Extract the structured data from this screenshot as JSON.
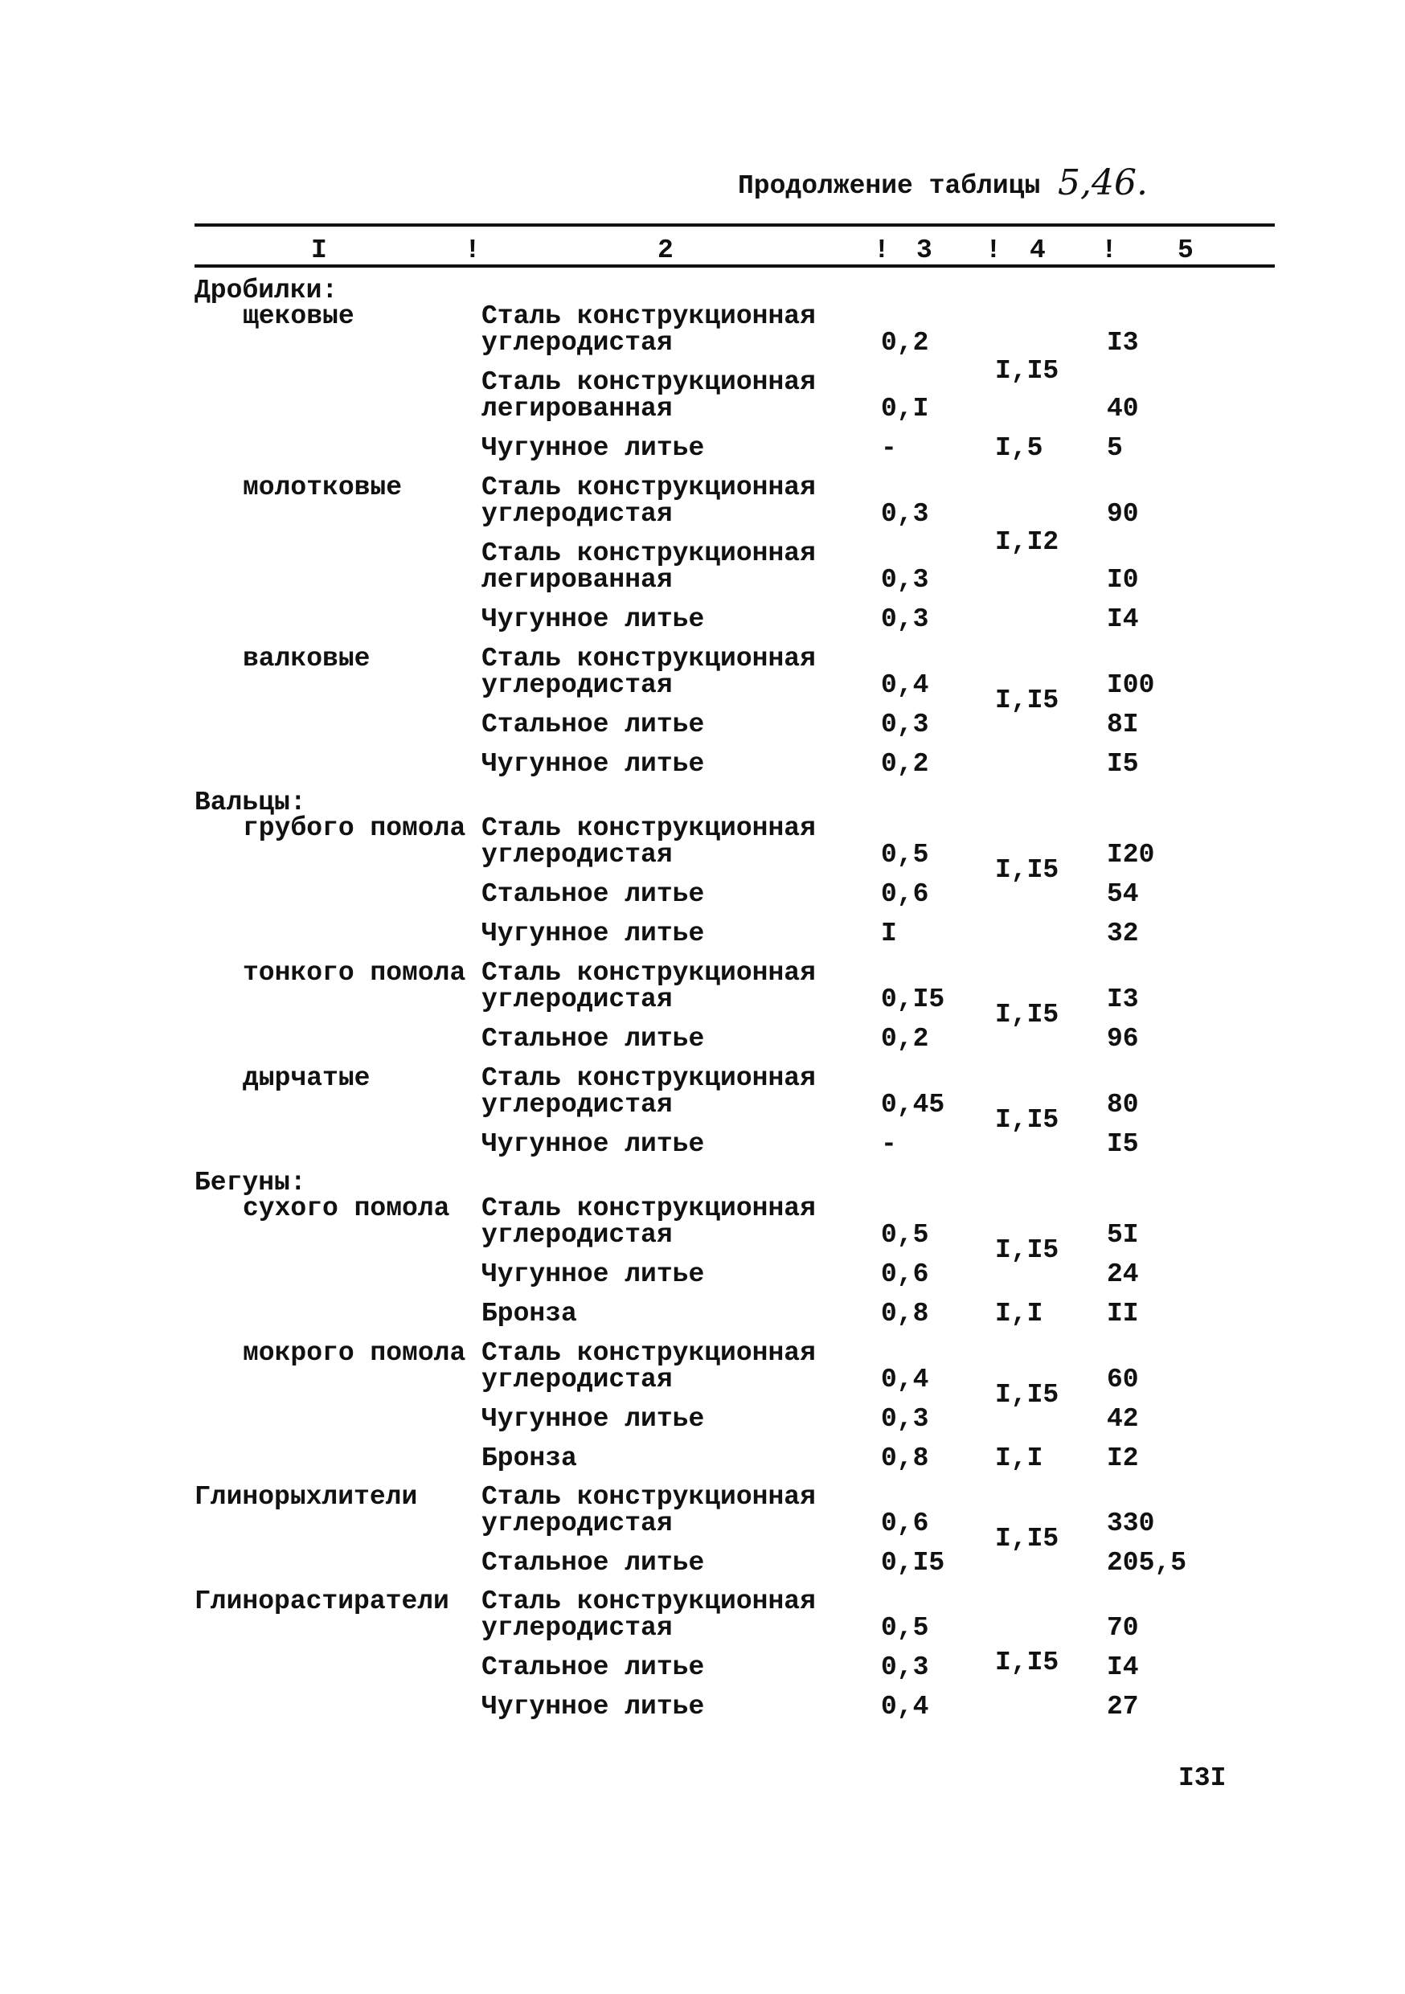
{
  "caption": {
    "text": "Продолжение таблицы",
    "handwritten_number": "5,46."
  },
  "header": {
    "columns": [
      "I",
      "2",
      "3",
      "4",
      "5"
    ],
    "separator": "!"
  },
  "sections": [
    {
      "title": "Дробилки:",
      "groups": [
        {
          "name": "щековые",
          "items": [
            {
              "material": [
                "Сталь конструкционная",
                "углеродистая"
              ],
              "c3": "0,2",
              "c4": "I,I5",
              "c4_rows": 2,
              "c5": "I3"
            },
            {
              "material": [
                "Сталь конструкционная",
                "легированная"
              ],
              "c3": "0,I",
              "c5": "40"
            },
            {
              "material": [
                "Чугунное литье"
              ],
              "c3": "-",
              "c4": "I,5",
              "c4_rows": 1,
              "c5": "5"
            }
          ]
        },
        {
          "name": "молотковые",
          "items": [
            {
              "material": [
                "Сталь конструкционная",
                "углеродистая"
              ],
              "c3": "0,3",
              "c4": "I,I2",
              "c4_rows": 2,
              "c5": "90"
            },
            {
              "material": [
                "Сталь конструкционная",
                "легированная"
              ],
              "c3": "0,3",
              "c5": "I0"
            },
            {
              "material": [
                "Чугунное литье"
              ],
              "c3": "0,3",
              "c5": "I4"
            }
          ]
        },
        {
          "name": "валковые",
          "items": [
            {
              "material": [
                "Сталь конструкционная",
                "углеродистая"
              ],
              "c3": "0,4",
              "c4": "I,I5",
              "c4_rows": 2,
              "c5": "I00"
            },
            {
              "material": [
                "Стальное литье"
              ],
              "c3": "0,3",
              "c5": "8I"
            },
            {
              "material": [
                "Чугунное литье"
              ],
              "c3": "0,2",
              "c5": "I5"
            }
          ]
        }
      ]
    },
    {
      "title": "Вальцы:",
      "groups": [
        {
          "name": "грубого помола",
          "items": [
            {
              "material": [
                "Сталь конструкционная",
                "углеродистая"
              ],
              "c3": "0,5",
              "c4": "I,I5",
              "c4_rows": 2,
              "c5": "I20"
            },
            {
              "material": [
                "Стальное литье"
              ],
              "c3": "0,6",
              "c5": "54"
            },
            {
              "material": [
                "Чугунное литье"
              ],
              "c3": "I",
              "c5": "32"
            }
          ]
        },
        {
          "name": "тонкого помола",
          "items": [
            {
              "material": [
                "Сталь конструкционная",
                "углеродистая"
              ],
              "c3": "0,I5",
              "c4": "I,I5",
              "c4_rows": 2,
              "c5": "I3"
            },
            {
              "material": [
                "Стальное литье"
              ],
              "c3": "0,2",
              "c5": "96"
            }
          ]
        },
        {
          "name": "дырчатые",
          "items": [
            {
              "material": [
                "Сталь конструкционная",
                "углеродистая"
              ],
              "c3": "0,45",
              "c4": "I,I5",
              "c4_rows": 2,
              "c5": "80"
            },
            {
              "material": [
                "Чугунное литье"
              ],
              "c3": "-",
              "c5": "I5"
            }
          ]
        }
      ]
    },
    {
      "title": "Бегуны:",
      "groups": [
        {
          "name": "сухого помола",
          "items": [
            {
              "material": [
                "Сталь конструкционная",
                "углеродистая"
              ],
              "c3": "0,5",
              "c4": "I,I5",
              "c4_rows": 2,
              "c5": "5I"
            },
            {
              "material": [
                "Чугунное литье"
              ],
              "c3": "0,6",
              "c5": "24"
            },
            {
              "material": [
                "Бронза"
              ],
              "c3": "0,8",
              "c4": "I,I",
              "c4_rows": 1,
              "c5": "II"
            }
          ]
        },
        {
          "name": "мокрого помола",
          "items": [
            {
              "material": [
                "Сталь конструкционная",
                "углеродистая"
              ],
              "c3": "0,4",
              "c4": "I,I5",
              "c4_rows": 2,
              "c5": "60"
            },
            {
              "material": [
                "Чугунное литье"
              ],
              "c3": "0,3",
              "c5": "42"
            },
            {
              "material": [
                "Бронза"
              ],
              "c3": "0,8",
              "c4": "I,I",
              "c4_rows": 1,
              "c5": "I2"
            }
          ]
        }
      ]
    },
    {
      "title": "Глинорыхлители",
      "inline": true,
      "groups": [
        {
          "name": "",
          "items": [
            {
              "material": [
                "Сталь конструкционная",
                "углеродистая"
              ],
              "c3": "0,6",
              "c4": "I,I5",
              "c4_rows": 2,
              "c5": "330"
            },
            {
              "material": [
                "Стальное литье"
              ],
              "c3": "0,I5",
              "c5": "205,5"
            }
          ]
        }
      ]
    },
    {
      "title": "Глинорастиратели",
      "inline": true,
      "groups": [
        {
          "name": "",
          "items": [
            {
              "material": [
                "Сталь конструкционная",
                "углеродистая"
              ],
              "c3": "0,5",
              "c4": "I,I5",
              "c4_rows": 3,
              "c5": "70"
            },
            {
              "material": [
                "Стальное литье"
              ],
              "c3": "0,3",
              "c5": "I4"
            },
            {
              "material": [
                "Чугунное литье"
              ],
              "c3": "0,4",
              "c5": "27"
            }
          ]
        }
      ]
    }
  ],
  "page_number": "I3I"
}
